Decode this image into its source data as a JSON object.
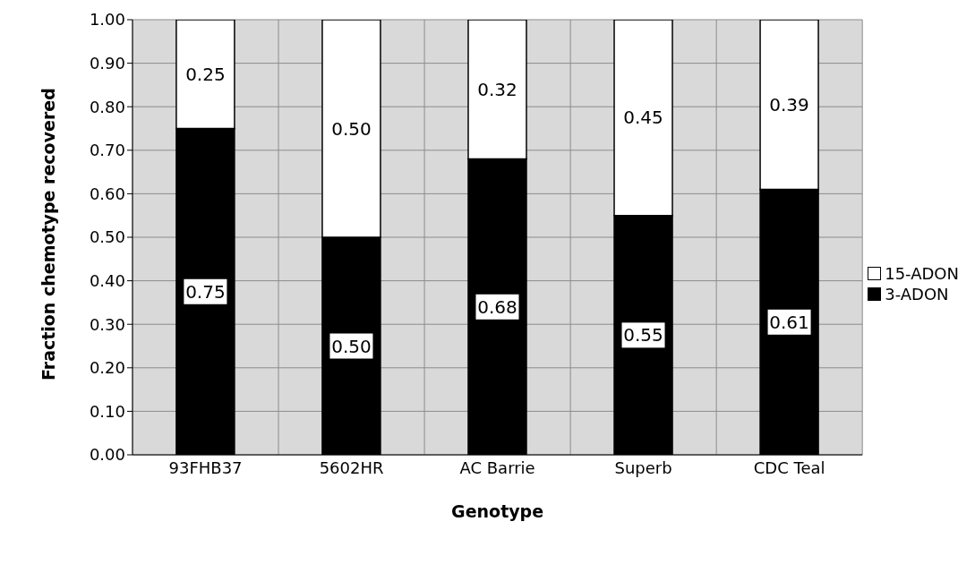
{
  "chart_data": {
    "type": "bar",
    "stacked": true,
    "xlabel": "Genotype",
    "ylabel": "Fraction chemotype recovered",
    "categories": [
      "93FHB37",
      "5602HR",
      "AC Barrie",
      "Superb",
      "CDC Teal"
    ],
    "series": [
      {
        "name": "3-ADON",
        "color": "#000000",
        "values": [
          0.75,
          0.5,
          0.68,
          0.55,
          0.61
        ],
        "value_labels": [
          "0.75",
          "0.50",
          "0.68",
          "0.55",
          "0.61"
        ]
      },
      {
        "name": "15-ADON",
        "color": "#ffffff",
        "values": [
          0.25,
          0.5,
          0.32,
          0.45,
          0.39
        ],
        "value_labels": [
          "0.25",
          "0.50",
          "0.32",
          "0.45",
          "0.39"
        ]
      }
    ],
    "ylim": [
      0,
      1
    ],
    "yticks": [
      {
        "value": 0,
        "label": "0.00"
      },
      {
        "value": 0.1,
        "label": "0.10"
      },
      {
        "value": 0.2,
        "label": "0.20"
      },
      {
        "value": 0.3,
        "label": "0.30"
      },
      {
        "value": 0.4,
        "label": "0.40"
      },
      {
        "value": 0.5,
        "label": "0.50"
      },
      {
        "value": 0.6,
        "label": "0.60"
      },
      {
        "value": 0.7,
        "label": "0.70"
      },
      {
        "value": 0.8,
        "label": "0.80"
      },
      {
        "value": 0.9,
        "label": "0.90"
      },
      {
        "value": 1,
        "label": "1.00"
      }
    ],
    "grid": true,
    "legend": "right"
  }
}
